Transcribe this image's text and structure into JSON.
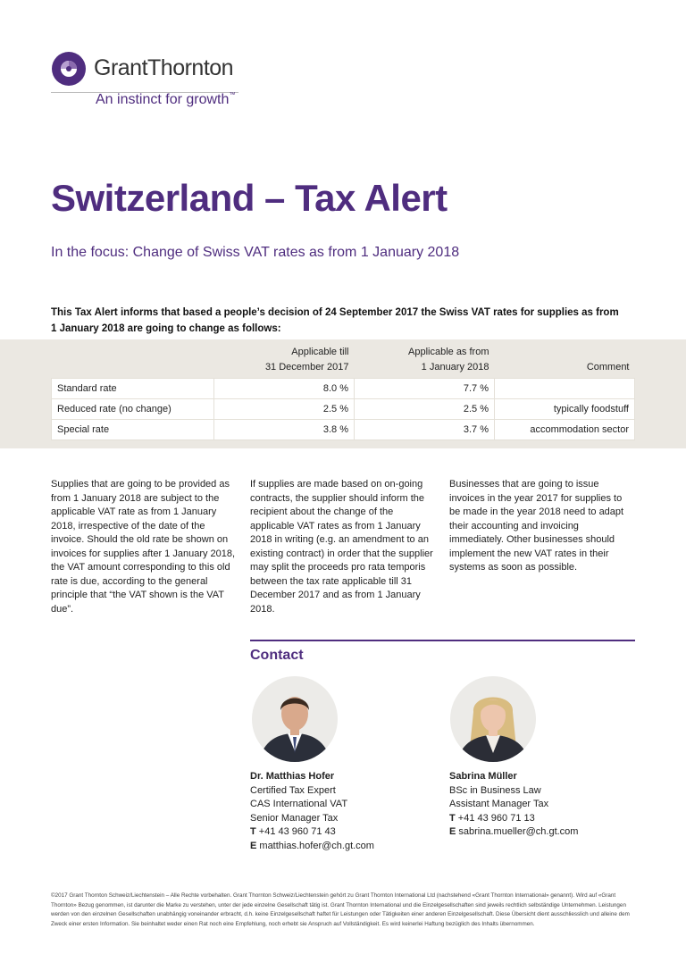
{
  "logo": {
    "name": "GrantThornton",
    "tagline": "An instinct for growth",
    "tm": "™",
    "colors": {
      "purple": "#4f2d7f",
      "light_purple": "#8b6aae"
    }
  },
  "title": "Switzerland – Tax Alert",
  "subtitle": "In the focus: Change of Swiss VAT rates as from 1 January 2018",
  "intro": "This Tax Alert informs that based a people’s decision of 24 September 2017 the Swiss VAT rates for supplies as from 1 January 2018 are going to change as follows:",
  "table": {
    "headers": {
      "till_l1": "Applicable till",
      "till_l2": "31 December 2017",
      "from_l1": "Applicable as from",
      "from_l2": "1 January 2018",
      "comment": "Comment"
    },
    "rows": [
      {
        "label": "Standard rate",
        "till": "8.0 %",
        "from": "7.7 %",
        "comment": ""
      },
      {
        "label": "Reduced rate (no change)",
        "till": "2.5 %",
        "from": "2.5 %",
        "comment": "typically foodstuff"
      },
      {
        "label": "Special rate",
        "till": "3.8 %",
        "from": "3.7 %",
        "comment": "accommodation sector"
      }
    ]
  },
  "columns": [
    "Supplies that are going to be provided as from 1 January 2018 are subject to the applicable VAT rate as from 1 January 2018, irrespective of the date of the invoice. Should the old rate be shown on invoices for supplies after 1 January 2018, the VAT amount corresponding to this old rate is due, according to the general principle that “the VAT shown is the VAT due”.",
    "If supplies are made based on on-going contracts, the supplier should inform the recipient about the change of the applicable VAT rates as from 1 January 2018 in writing (e.g. an amendment to an existing contract) in order that the supplier may split the proceeds pro rata temporis between the tax rate applicable till 31 December 2017 and as from 1 January 2018.",
    "Businesses that are going to issue invoices in the year 2017 for supplies to be made in the year 2018 need to adapt their accounting and invoicing immediately. Other businesses should implement the new VAT rates in their systems as soon as possible."
  ],
  "contact": {
    "heading": "Contact",
    "people": [
      {
        "name": "Dr. Matthias Hofer",
        "lines": [
          "Certified Tax Expert",
          "CAS International VAT",
          "Senior Manager Tax"
        ],
        "phone_label": "T",
        "phone": "+41 43 960 71 43",
        "email_label": "E",
        "email": "matthias.hofer@ch.gt.com"
      },
      {
        "name": "Sabrina Müller",
        "lines": [
          "BSc in Business Law",
          "Assistant Manager Tax"
        ],
        "phone_label": "T",
        "phone": "+41 43 960 71 13",
        "email_label": "E",
        "email": "sabrina.mueller@ch.gt.com"
      }
    ]
  },
  "footer": "©2017 Grant Thornton Schweiz/Liechtenstein – Alle Rechte vorbehalten. Grant Thornton Schweiz/Liechtenstein gehört zu Grant Thornton International Ltd (nachstehend «Grant Thornton International» genannt). Wird auf «Grant Thornton» Bezug genommen, ist darunter die Marke zu verstehen, unter der jede einzelne Gesellschaft tätig ist. Grant Thornton International und die Einzelgesellschaften sind jeweils rechtlich selbständige Unternehmen. Leistungen werden von den einzelnen Gesellschaften unabhängig voneinander erbracht, d.h. keine Einzelgesellschaft haftet für Leistungen oder Tätigkeiten einer anderen Einzelgesellschaft. Diese Übersicht dient ausschliesslich und alleine dem Zweck einer ersten Information. Sie beinhaltet weder einen Rat noch eine Empfehlung, noch erhebt sie Anspruch auf Vollständigkeit. Es wird keinerlei Haftung bezüglich des Inhalts übernommen."
}
